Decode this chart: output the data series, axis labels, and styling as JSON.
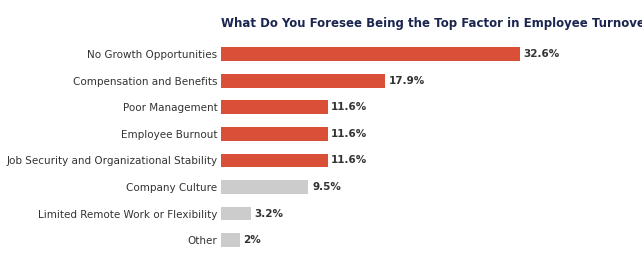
{
  "title": "What Do You Foresee Being the Top Factor in Employee Turnover Next Year at Your Organization?",
  "categories": [
    "Other",
    "Limited Remote Work or Flexibility",
    "Company Culture",
    "Job Security and Organizational Stability",
    "Employee Burnout",
    "Poor Management",
    "Compensation and Benefits",
    "No Growth Opportunities"
  ],
  "values": [
    2.0,
    3.2,
    9.5,
    11.6,
    11.6,
    11.6,
    17.9,
    32.6
  ],
  "labels": [
    "2%",
    "3.2%",
    "9.5%",
    "11.6%",
    "11.6%",
    "11.6%",
    "17.9%",
    "32.6%"
  ],
  "bar_colors": [
    "#cccccc",
    "#cccccc",
    "#cccccc",
    "#d94f38",
    "#d94f38",
    "#d94f38",
    "#d94f38",
    "#d94f38"
  ],
  "title_fontsize": 8.5,
  "label_fontsize": 7.5,
  "value_fontsize": 7.5,
  "title_color": "#1a2550",
  "label_color": "#333333",
  "value_color": "#333333",
  "background_color": "#ffffff",
  "xlim": [
    0,
    40
  ],
  "bar_height": 0.52
}
